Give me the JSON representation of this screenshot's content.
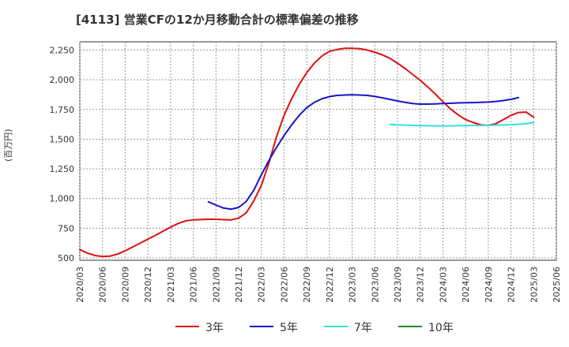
{
  "title": "[4113]  営業CFの12か月移動合計の標準偏差の推移",
  "ylabel": "(百万円)",
  "chart_data": {
    "type": "line",
    "title": "[4113]  営業CFの12か月移動合計の標準偏差の推移",
    "xlabel": "",
    "ylabel": "(百万円)",
    "ylim": [
      480,
      2320
    ],
    "yticks": [
      500,
      750,
      1000,
      1250,
      1500,
      1750,
      2000,
      2250
    ],
    "ytick_labels": [
      "500",
      "750",
      "1,000",
      "1,250",
      "1,500",
      "1,750",
      "2,000",
      "2,250"
    ],
    "xticks": [
      "2020/03",
      "2020/06",
      "2020/09",
      "2020/12",
      "2021/03",
      "2021/06",
      "2021/09",
      "2021/12",
      "2022/03",
      "2022/06",
      "2022/09",
      "2022/12",
      "2023/03",
      "2023/06",
      "2023/09",
      "2023/12",
      "2024/03",
      "2024/06",
      "2024/09",
      "2024/12",
      "2025/03",
      "2025/06"
    ],
    "grid": true,
    "legend_position": "bottom",
    "x_start": "2020/03",
    "series": [
      {
        "name": "3年",
        "color": "#dd1111",
        "start": "2020/03",
        "values": [
          570,
          540,
          520,
          512,
          515,
          532,
          560,
          592,
          625,
          658,
          690,
          725,
          758,
          790,
          812,
          820,
          823,
          825,
          825,
          822,
          820,
          835,
          880,
          980,
          1110,
          1300,
          1520,
          1700,
          1840,
          1960,
          2060,
          2140,
          2200,
          2240,
          2255,
          2265,
          2265,
          2262,
          2250,
          2232,
          2210,
          2180,
          2140,
          2095,
          2045,
          1995,
          1940,
          1880,
          1815,
          1755,
          1705,
          1665,
          1640,
          1620,
          1615,
          1630,
          1665,
          1700,
          1725,
          1728,
          1685
        ]
      },
      {
        "name": "5年",
        "color": "#1515cc",
        "start": "2021/08",
        "values": [
          972,
          945,
          920,
          910,
          925,
          975,
          1070,
          1200,
          1320,
          1430,
          1530,
          1620,
          1700,
          1765,
          1810,
          1840,
          1858,
          1868,
          1872,
          1874,
          1872,
          1868,
          1860,
          1848,
          1835,
          1822,
          1810,
          1800,
          1795,
          1795,
          1797,
          1800,
          1802,
          1805,
          1807,
          1808,
          1810,
          1813,
          1818,
          1825,
          1835,
          1850
        ]
      },
      {
        "name": "7年",
        "color": "#33e0e6",
        "start": "2023/08",
        "values": [
          1625,
          1620,
          1618,
          1616,
          1614,
          1613,
          1612,
          1612,
          1612,
          1613,
          1614,
          1615,
          1615,
          1616,
          1618,
          1620,
          1622,
          1626,
          1630,
          1640
        ]
      },
      {
        "name": "10年",
        "color": "#228822",
        "start": "2025/03",
        "values": []
      }
    ]
  }
}
